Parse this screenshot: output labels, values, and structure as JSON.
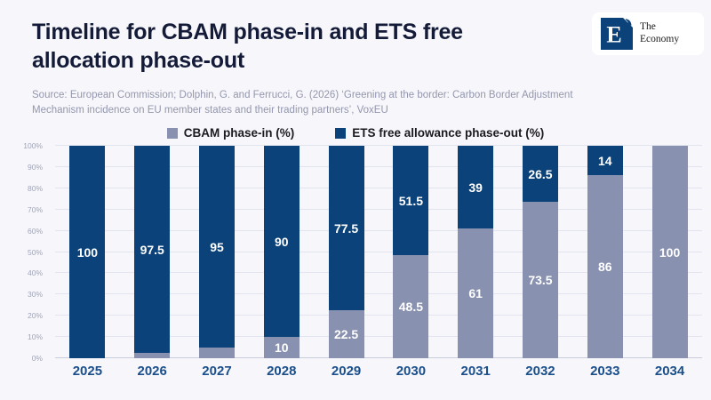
{
  "header": {
    "title": "Timeline for CBAM phase-in and ETS free\nallocation phase-out",
    "source": "Source: European Commission; Dolphin, G. and Ferrucci, G. (2026) ‘Greening at the border: Carbon Border Adjustment\nMechanism incidence on EU member states and their trading partners’, VoxEU"
  },
  "logo": {
    "letter": "E",
    "name_line1": "The",
    "name_line2": "Economy"
  },
  "legend": [
    {
      "label": "CBAM phase-in (%)",
      "color": "#8891AF"
    },
    {
      "label": "ETS free allowance phase-out (%)",
      "color": "#0B4279"
    }
  ],
  "chart_data": {
    "type": "bar",
    "stacked": true,
    "title": "Timeline for CBAM phase-in and ETS free allocation phase-out",
    "categories": [
      "2025",
      "2026",
      "2027",
      "2028",
      "2029",
      "2030",
      "2031",
      "2032",
      "2033",
      "2034"
    ],
    "series": [
      {
        "name": "CBAM phase-in (%)",
        "color": "#8891AF",
        "values": [
          0,
          2.5,
          5,
          10,
          22.5,
          48.5,
          61,
          73.5,
          86,
          100
        ]
      },
      {
        "name": "ETS free allowance phase-out (%)",
        "color": "#0B4279",
        "values": [
          100,
          97.5,
          95,
          90,
          77.5,
          51.5,
          39,
          26.5,
          14,
          0
        ]
      }
    ],
    "xlabel": "",
    "ylabel": "",
    "ylim": [
      0,
      100
    ],
    "y_ticks": [
      "0%",
      "10%",
      "20%",
      "30%",
      "40%",
      "50%",
      "60%",
      "70%",
      "80%",
      "90%",
      "100%"
    ],
    "grid": true,
    "legend_position": "top",
    "bar_labels": true
  },
  "colors": {
    "background": "#F7F7FB",
    "title": "#141B38",
    "source": "#9396AD",
    "grid": "#E2E5F0",
    "axis": "#C8CCDB",
    "x_tick_label": "#1A4F8C",
    "y_tick_label": "#9EA3B9",
    "bar_label": "#FFFFFF",
    "logo_navy": "#0B4279"
  }
}
